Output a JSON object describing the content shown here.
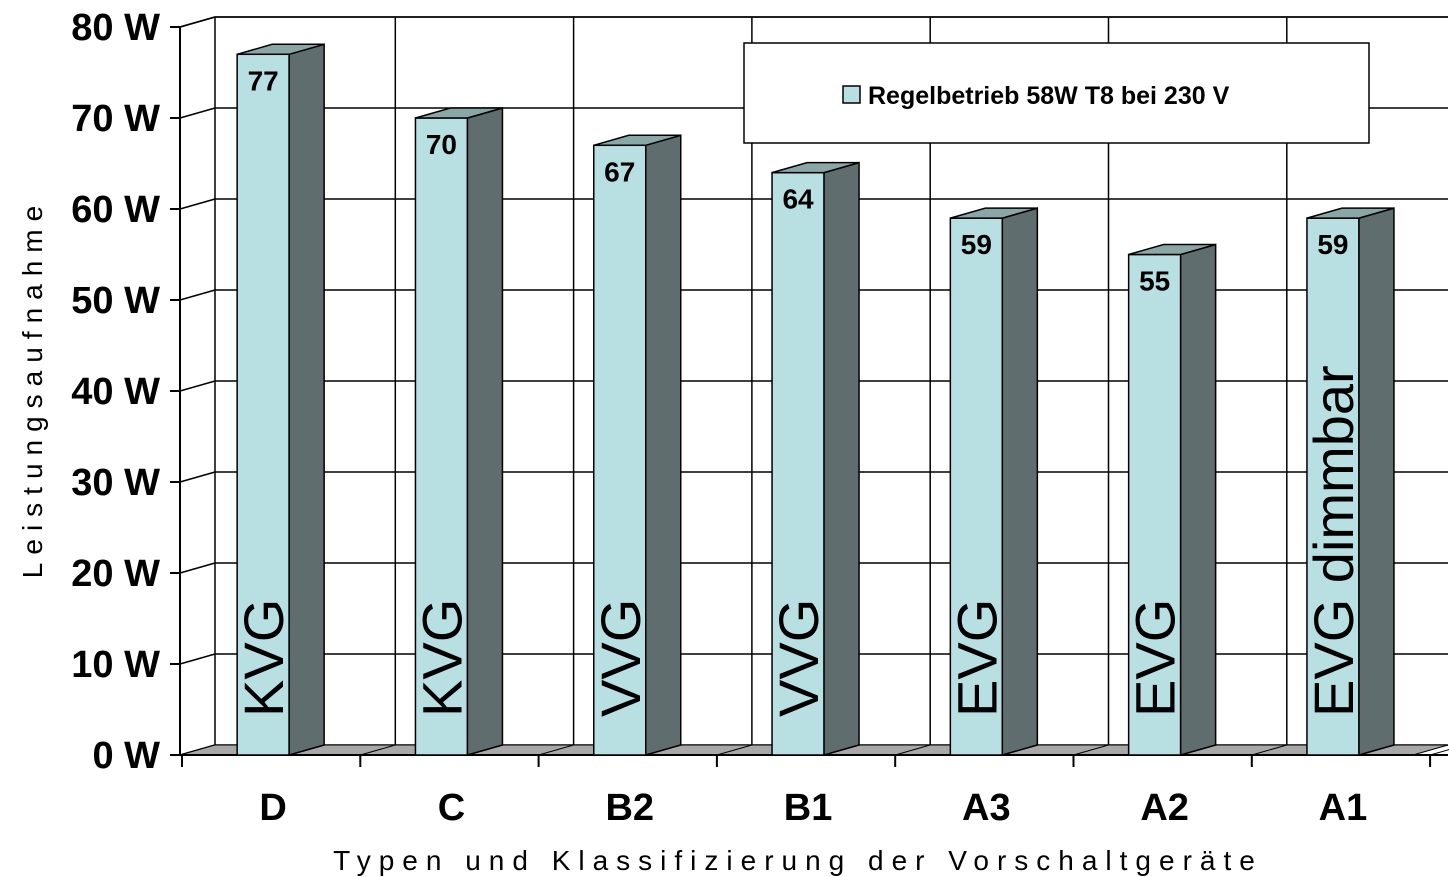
{
  "chart_data": {
    "type": "bar",
    "categories": [
      "D",
      "C",
      "B2",
      "B1",
      "A3",
      "A2",
      "A1"
    ],
    "series": [
      {
        "name": "Regelbetrieb 58W T8 bei 230 V",
        "values": [
          77,
          70,
          67,
          64,
          59,
          55,
          59
        ]
      }
    ],
    "bar_type_labels": [
      "KVG",
      "KVG",
      "VVG",
      "VVG",
      "EVG",
      "EVG",
      "EVG dimmbar"
    ],
    "y_ticks": [
      "0 W",
      "10 W",
      "20 W",
      "30 W",
      "40 W",
      "50 W",
      "60 W",
      "70 W",
      "80 W"
    ],
    "ylim": [
      0,
      80
    ],
    "title": "",
    "xlabel": "Typen und Klassifizierung der Vorschaltgeräte",
    "ylabel": "Leistungsaufnahme",
    "grid": true,
    "legend_position": "top-right",
    "colors": {
      "bar_front": "#b8e0e2",
      "bar_side": "#5f6d6e",
      "bar_top": "#8aa7a8",
      "floor": "#a8a8a8",
      "grid": "#000000",
      "background": "#ffffff"
    }
  }
}
